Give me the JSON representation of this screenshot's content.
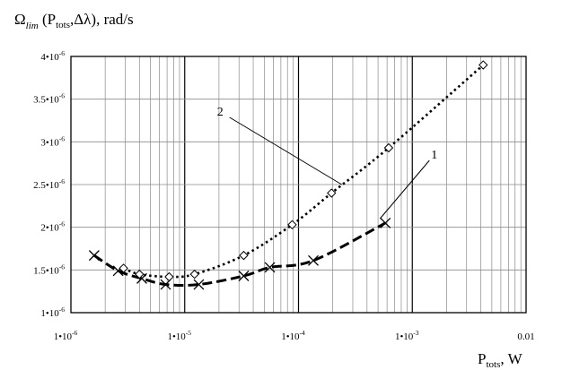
{
  "chart_data": {
    "type": "line",
    "title": {
      "omega": "Ω",
      "omega_sub": "lim",
      "open": " (P",
      "p_sub": "tots",
      "rest": ",Δλ), rad/s"
    },
    "xlabel": {
      "main": "P",
      "sub": "tots",
      "rest": ", W"
    },
    "x_scale": "log",
    "xlim": [
      1e-06,
      0.01
    ],
    "ylim": [
      1e-06,
      4e-06
    ],
    "grid": true,
    "x_ticks": [
      {
        "value": 1e-06,
        "mant": "1•10",
        "exp": "-6"
      },
      {
        "value": 1e-05,
        "mant": "1•10",
        "exp": "-5"
      },
      {
        "value": 0.0001,
        "mant": "1•10",
        "exp": "-4"
      },
      {
        "value": 0.001,
        "mant": "1•10",
        "exp": "-3"
      },
      {
        "value": 0.01,
        "mant": "0.01",
        "exp": ""
      }
    ],
    "y_ticks": [
      {
        "value": 1e-06,
        "mant": "1•10",
        "exp": "-6"
      },
      {
        "value": 1.5e-06,
        "mant": "1.5•10",
        "exp": "-6"
      },
      {
        "value": 2e-06,
        "mant": "2•10",
        "exp": "-6"
      },
      {
        "value": 2.5e-06,
        "mant": "2.5•10",
        "exp": "-6"
      },
      {
        "value": 3e-06,
        "mant": "3•10",
        "exp": "-6"
      },
      {
        "value": 3.5e-06,
        "mant": "3.5•10",
        "exp": "-6"
      },
      {
        "value": 4e-06,
        "mant": "4•10",
        "exp": "-6"
      }
    ],
    "series": [
      {
        "name": "1",
        "marker": "x",
        "style": "dashed",
        "x": [
          1.6e-06,
          2.6e-06,
          4.2e-06,
          6.8e-06,
          1.33e-05,
          3.3e-05,
          5.6e-05,
          0.000135,
          0.00058
        ],
        "y": [
          1.67e-06,
          1.49e-06,
          1.4e-06,
          1.33e-06,
          1.33e-06,
          1.43e-06,
          1.53e-06,
          1.61e-06,
          2.05e-06
        ]
      },
      {
        "name": "2",
        "marker": "diamond",
        "style": "dotted",
        "x": [
          2.9e-06,
          4e-06,
          7.3e-06,
          1.22e-05,
          3.3e-05,
          8.8e-05,
          0.000195,
          0.00062,
          0.0042
        ],
        "y": [
          1.52e-06,
          1.45e-06,
          1.42e-06,
          1.45e-06,
          1.67e-06,
          2.03e-06,
          2.4e-06,
          2.93e-06,
          3.9e-06
        ]
      }
    ],
    "annotations": [
      {
        "label": "2",
        "series": 1,
        "at": 0.00024,
        "at_y": 2.5e-06
      },
      {
        "label": "1",
        "series": 0,
        "at": 0.00052,
        "at_y": 2.1e-06
      }
    ]
  }
}
